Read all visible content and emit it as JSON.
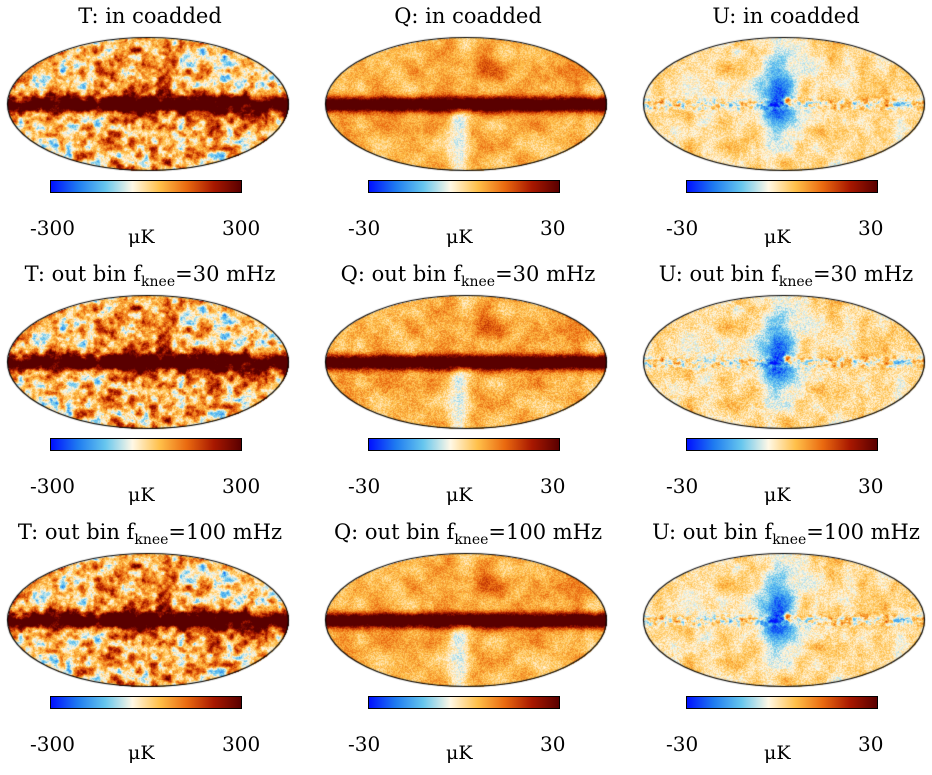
{
  "panels": [
    {
      "id": "T-coadded",
      "title_main": "T: in coadded",
      "title_sub": "",
      "title_tail": "",
      "tick_lo": "-300",
      "tick_hi": "300",
      "unit": "μK",
      "field": "T",
      "noise": 1.0
    },
    {
      "id": "Q-coadded",
      "title_main": "Q: in coadded",
      "title_sub": "",
      "title_tail": "",
      "tick_lo": "-30",
      "tick_hi": "30",
      "unit": "μK",
      "field": "Q",
      "noise": 1.0
    },
    {
      "id": "U-coadded",
      "title_main": "U: in coadded",
      "title_sub": "",
      "title_tail": "",
      "tick_lo": "-30",
      "tick_hi": "30",
      "unit": "μK",
      "field": "U",
      "noise": 1.0
    },
    {
      "id": "T-30",
      "title_main": "T: out bin f",
      "title_sub": "knee",
      "title_tail": "=30 mHz",
      "tick_lo": "-300",
      "tick_hi": "300",
      "unit": "μK",
      "field": "T",
      "noise": 1.15
    },
    {
      "id": "Q-30",
      "title_main": "Q: out bin f",
      "title_sub": "knee",
      "title_tail": "=30 mHz",
      "tick_lo": "-30",
      "tick_hi": "30",
      "unit": "μK",
      "field": "Q",
      "noise": 1.15
    },
    {
      "id": "U-30",
      "title_main": "U: out bin f",
      "title_sub": "knee",
      "title_tail": "=30 mHz",
      "tick_lo": "-30",
      "tick_hi": "30",
      "unit": "μK",
      "field": "U",
      "noise": 1.15
    },
    {
      "id": "T-100",
      "title_main": "T: out bin f",
      "title_sub": "knee",
      "title_tail": "=100 mHz",
      "tick_lo": "-300",
      "tick_hi": "300",
      "unit": "μK",
      "field": "T",
      "noise": 1.05
    },
    {
      "id": "Q-100",
      "title_main": "Q: out bin f",
      "title_sub": "knee",
      "title_tail": "=100 mHz",
      "tick_lo": "-30",
      "tick_hi": "30",
      "unit": "μK",
      "field": "Q",
      "noise": 1.05
    },
    {
      "id": "U-100",
      "title_main": "U: out bin f",
      "title_sub": "knee",
      "title_tail": "=100 mHz",
      "tick_lo": "-30",
      "tick_hi": "30",
      "unit": "μK",
      "field": "U",
      "noise": 1.05
    }
  ],
  "colormap": [
    "#0010ff",
    "#1f7cf0",
    "#66c6ee",
    "#fff8e6",
    "#ffc04a",
    "#ea6a10",
    "#a81800",
    "#5a0000"
  ]
}
